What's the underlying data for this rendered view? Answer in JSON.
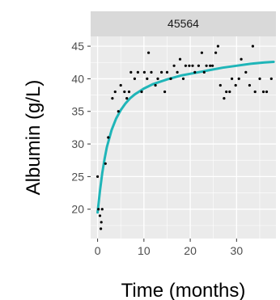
{
  "chart_data": {
    "type": "scatter",
    "facet_label": "45564",
    "xlabel": "Time (months)",
    "ylabel": "Albumin (g/L)",
    "xlim": [
      -1.5,
      38.5
    ],
    "ylim": [
      15.5,
      46.5
    ],
    "x_ticks": [
      0,
      10,
      20,
      30
    ],
    "y_ticks": [
      20,
      25,
      30,
      35,
      40,
      45
    ],
    "grid": true,
    "points": [
      {
        "x": 0,
        "y": 25
      },
      {
        "x": 0.2,
        "y": 20
      },
      {
        "x": 0.5,
        "y": 19
      },
      {
        "x": 0.7,
        "y": 17
      },
      {
        "x": 0.8,
        "y": 18
      },
      {
        "x": 1,
        "y": 20
      },
      {
        "x": 1.7,
        "y": 27
      },
      {
        "x": 2.3,
        "y": 31
      },
      {
        "x": 3.2,
        "y": 37
      },
      {
        "x": 3.8,
        "y": 38
      },
      {
        "x": 4.5,
        "y": 35
      },
      {
        "x": 5,
        "y": 39
      },
      {
        "x": 5.8,
        "y": 38
      },
      {
        "x": 6.3,
        "y": 37
      },
      {
        "x": 6.8,
        "y": 38
      },
      {
        "x": 7.2,
        "y": 41
      },
      {
        "x": 8,
        "y": 40
      },
      {
        "x": 8.7,
        "y": 41
      },
      {
        "x": 9.5,
        "y": 38
      },
      {
        "x": 10.1,
        "y": 41
      },
      {
        "x": 10.7,
        "y": 40
      },
      {
        "x": 11,
        "y": 44
      },
      {
        "x": 11.6,
        "y": 41
      },
      {
        "x": 12.5,
        "y": 39
      },
      {
        "x": 13,
        "y": 40
      },
      {
        "x": 13.8,
        "y": 41
      },
      {
        "x": 14.5,
        "y": 38
      },
      {
        "x": 15,
        "y": 41
      },
      {
        "x": 15.8,
        "y": 40
      },
      {
        "x": 16.5,
        "y": 42
      },
      {
        "x": 17.2,
        "y": 41
      },
      {
        "x": 17.8,
        "y": 43
      },
      {
        "x": 18.5,
        "y": 40
      },
      {
        "x": 19,
        "y": 42
      },
      {
        "x": 19.8,
        "y": 42
      },
      {
        "x": 20.5,
        "y": 42
      },
      {
        "x": 21,
        "y": 41
      },
      {
        "x": 21.8,
        "y": 42
      },
      {
        "x": 22.5,
        "y": 44
      },
      {
        "x": 23,
        "y": 41
      },
      {
        "x": 23.5,
        "y": 42
      },
      {
        "x": 24.3,
        "y": 42
      },
      {
        "x": 24.8,
        "y": 42
      },
      {
        "x": 25.5,
        "y": 44
      },
      {
        "x": 26,
        "y": 45
      },
      {
        "x": 26.5,
        "y": 39
      },
      {
        "x": 27.3,
        "y": 37
      },
      {
        "x": 27.8,
        "y": 38
      },
      {
        "x": 28.5,
        "y": 38
      },
      {
        "x": 29,
        "y": 40
      },
      {
        "x": 29.8,
        "y": 39
      },
      {
        "x": 30.5,
        "y": 40
      },
      {
        "x": 31,
        "y": 43
      },
      {
        "x": 32,
        "y": 41
      },
      {
        "x": 32.8,
        "y": 39
      },
      {
        "x": 33.5,
        "y": 45
      },
      {
        "x": 34,
        "y": 38
      },
      {
        "x": 35,
        "y": 40
      },
      {
        "x": 35.8,
        "y": 38
      },
      {
        "x": 36.5,
        "y": 38
      },
      {
        "x": 37.5,
        "y": 40
      }
    ],
    "fit_line": {
      "color": "#1fb5b8",
      "x": [
        0,
        0.5,
        1,
        1.5,
        2,
        3,
        4,
        5,
        6,
        7,
        8,
        10,
        12,
        15,
        18,
        21,
        24,
        27,
        30,
        33,
        36,
        38
      ],
      "y": [
        19.5,
        22.8,
        25.5,
        27.7,
        29.5,
        32.1,
        33.9,
        35.2,
        36.2,
        37.0,
        37.6,
        38.5,
        39.2,
        39.9,
        40.5,
        40.9,
        41.3,
        41.7,
        42.0,
        42.3,
        42.5,
        42.6
      ]
    },
    "colors": {
      "panel_background": "#ebebeb",
      "grid_major": "#ffffff",
      "strip_background": "#d9d9d9",
      "points": "#000000",
      "fit_line": "#1fb5b8"
    }
  }
}
